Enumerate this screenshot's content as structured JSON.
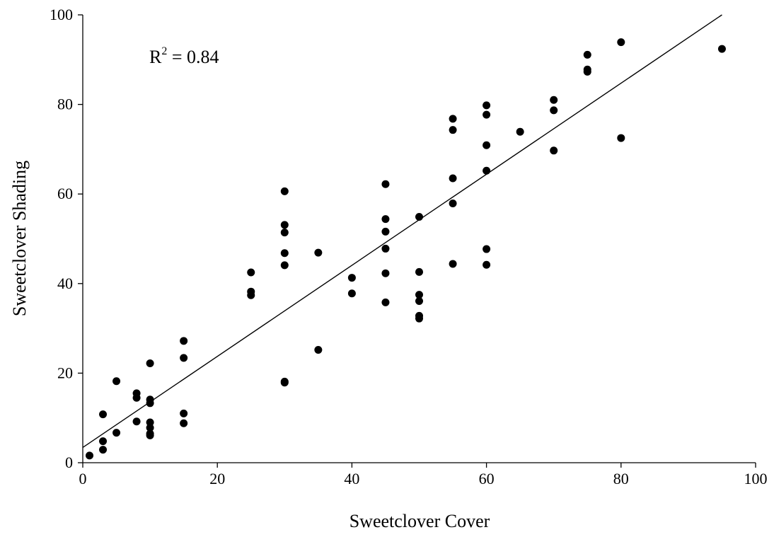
{
  "chart_data": {
    "type": "scatter",
    "title": "",
    "xlabel": "Sweetclover Cover",
    "ylabel": "Sweetclover Shading",
    "xlim": [
      0,
      100
    ],
    "ylim": [
      0,
      100
    ],
    "x_ticks": [
      0,
      20,
      40,
      60,
      80,
      100
    ],
    "y_ticks": [
      0,
      20,
      40,
      60,
      80,
      100
    ],
    "grid": false,
    "annotation": {
      "base": "R",
      "sup": "2",
      "text": " = 0.84"
    },
    "trendline": {
      "x": [
        0,
        95
      ],
      "y": [
        3.4,
        100
      ]
    },
    "marker_color": "#000000",
    "points": [
      [
        1,
        1.6
      ],
      [
        3,
        10.8
      ],
      [
        3,
        4.8
      ],
      [
        3,
        2.9
      ],
      [
        5,
        18.2
      ],
      [
        5,
        6.7
      ],
      [
        8,
        15.5
      ],
      [
        8,
        14.5
      ],
      [
        8,
        9.2
      ],
      [
        10,
        22.2
      ],
      [
        10,
        14.1
      ],
      [
        10,
        13.3
      ],
      [
        10,
        9.0
      ],
      [
        10,
        7.8
      ],
      [
        10,
        6.5
      ],
      [
        10,
        6.1
      ],
      [
        15,
        27.2
      ],
      [
        15,
        23.4
      ],
      [
        15,
        11.0
      ],
      [
        15,
        8.8
      ],
      [
        25,
        42.5
      ],
      [
        25,
        38.2
      ],
      [
        25,
        37.4
      ],
      [
        30,
        60.6
      ],
      [
        30,
        53.1
      ],
      [
        30,
        51.4
      ],
      [
        30,
        46.8
      ],
      [
        30,
        44.1
      ],
      [
        30,
        18.1
      ],
      [
        30,
        17.9
      ],
      [
        35,
        46.9
      ],
      [
        35,
        25.2
      ],
      [
        40,
        41.3
      ],
      [
        40,
        37.8
      ],
      [
        45,
        62.2
      ],
      [
        45,
        54.4
      ],
      [
        45,
        51.6
      ],
      [
        45,
        47.8
      ],
      [
        45,
        42.3
      ],
      [
        45,
        35.8
      ],
      [
        50,
        54.9
      ],
      [
        50,
        42.6
      ],
      [
        50,
        37.5
      ],
      [
        50,
        36.1
      ],
      [
        50,
        32.8
      ],
      [
        50,
        32.2
      ],
      [
        55,
        76.8
      ],
      [
        55,
        74.3
      ],
      [
        55,
        63.5
      ],
      [
        55,
        57.9
      ],
      [
        55,
        44.4
      ],
      [
        60,
        79.8
      ],
      [
        60,
        77.7
      ],
      [
        60,
        70.9
      ],
      [
        60,
        65.2
      ],
      [
        60,
        47.7
      ],
      [
        60,
        44.2
      ],
      [
        65,
        73.9
      ],
      [
        70,
        81.0
      ],
      [
        70,
        78.7
      ],
      [
        70,
        69.7
      ],
      [
        75,
        91.1
      ],
      [
        75,
        87.8
      ],
      [
        75,
        87.3
      ],
      [
        80,
        93.9
      ],
      [
        80,
        72.5
      ],
      [
        95,
        92.4
      ]
    ]
  }
}
